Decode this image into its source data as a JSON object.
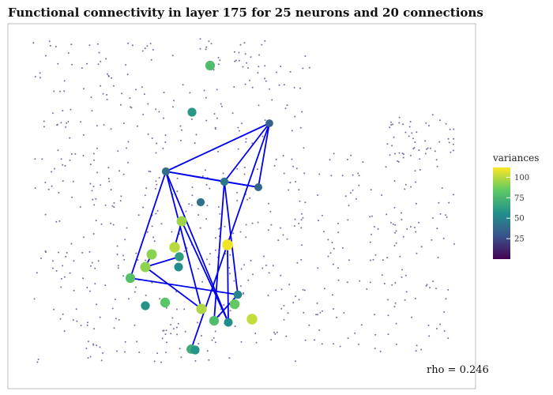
{
  "chart_data": {
    "type": "scatter",
    "title": "Functional connectivity in layer 175 for 25 neurons and 20 connections",
    "annotation": "rho = 0.246",
    "legend": {
      "title": "variances",
      "ticks": [
        25,
        50,
        75,
        100
      ],
      "range": [
        0,
        112
      ],
      "placement": "right"
    },
    "grid": false,
    "colors": {
      "background_point": "#7b6a9e",
      "edge": "#0000ee",
      "panel_border": "#bdbdbd"
    },
    "neurons": [
      {
        "x": 266,
        "y": 83,
        "variance": 78
      },
      {
        "x": 243,
        "y": 142,
        "variance": 60
      },
      {
        "x": 341,
        "y": 156,
        "variance": 35
      },
      {
        "x": 210,
        "y": 217,
        "variance": 40
      },
      {
        "x": 284,
        "y": 230,
        "variance": 45
      },
      {
        "x": 327,
        "y": 237,
        "variance": 36
      },
      {
        "x": 254,
        "y": 256,
        "variance": 42
      },
      {
        "x": 230,
        "y": 280,
        "variance": 95
      },
      {
        "x": 221,
        "y": 313,
        "variance": 100
      },
      {
        "x": 288,
        "y": 310,
        "variance": 110
      },
      {
        "x": 192,
        "y": 322,
        "variance": 92
      },
      {
        "x": 227,
        "y": 325,
        "variance": 62
      },
      {
        "x": 184,
        "y": 338,
        "variance": 93
      },
      {
        "x": 226,
        "y": 338,
        "variance": 55
      },
      {
        "x": 165,
        "y": 352,
        "variance": 80
      },
      {
        "x": 301,
        "y": 373,
        "variance": 50
      },
      {
        "x": 209,
        "y": 383,
        "variance": 82
      },
      {
        "x": 184,
        "y": 387,
        "variance": 58
      },
      {
        "x": 297,
        "y": 385,
        "variance": 85
      },
      {
        "x": 255,
        "y": 391,
        "variance": 98
      },
      {
        "x": 271,
        "y": 406,
        "variance": 78
      },
      {
        "x": 289,
        "y": 408,
        "variance": 55
      },
      {
        "x": 319,
        "y": 404,
        "variance": 102
      },
      {
        "x": 242,
        "y": 442,
        "variance": 70
      },
      {
        "x": 247,
        "y": 443,
        "variance": 58
      }
    ],
    "connections": [
      [
        3,
        2
      ],
      [
        3,
        5
      ],
      [
        2,
        5
      ],
      [
        2,
        4
      ],
      [
        4,
        5
      ],
      [
        3,
        4
      ],
      [
        3,
        14
      ],
      [
        3,
        19
      ],
      [
        3,
        21
      ],
      [
        2,
        23
      ],
      [
        4,
        15
      ],
      [
        4,
        20
      ],
      [
        14,
        15
      ],
      [
        12,
        19
      ],
      [
        7,
        8
      ],
      [
        11,
        12
      ],
      [
        7,
        21
      ],
      [
        10,
        12
      ],
      [
        9,
        21
      ],
      [
        15,
        20
      ]
    ]
  }
}
